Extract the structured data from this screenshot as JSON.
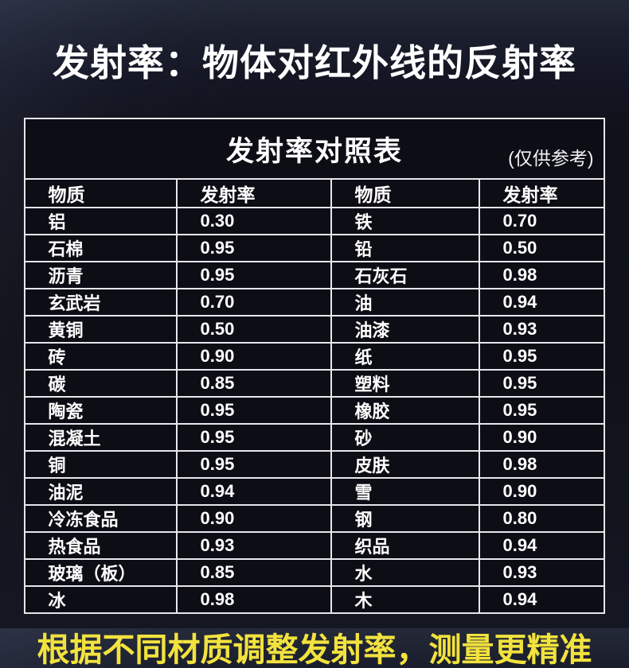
{
  "page": {
    "main_title": "发射率：物体对红外线的反射率",
    "footer_note": "根据不同材质调整发射率，测量更精准",
    "colors": {
      "background": "#12131c",
      "background_top": "#242938",
      "table_cell_background": "#0d0e15",
      "table_border": "#e6e6ec",
      "text": "#ffffff",
      "footer_text": "#f2e23e"
    }
  },
  "chart_data": {
    "type": "table",
    "title": "发射率对照表",
    "subtitle": "(仅供参考)",
    "columns": [
      "物质",
      "发射率",
      "物质",
      "发射率"
    ],
    "rows": [
      [
        "铝",
        "0.30",
        "铁",
        "0.70"
      ],
      [
        "石棉",
        "0.95",
        "铅",
        "0.50"
      ],
      [
        "沥青",
        "0.95",
        "石灰石",
        "0.98"
      ],
      [
        "玄武岩",
        "0.70",
        "油",
        "0.94"
      ],
      [
        "黄铜",
        "0.50",
        "油漆",
        "0.93"
      ],
      [
        "砖",
        "0.90",
        "纸",
        "0.95"
      ],
      [
        "碳",
        "0.85",
        "塑料",
        "0.95"
      ],
      [
        "陶瓷",
        "0.95",
        "橡胶",
        "0.95"
      ],
      [
        "混凝土",
        "0.95",
        "砂",
        "0.90"
      ],
      [
        "铜",
        "0.95",
        "皮肤",
        "0.98"
      ],
      [
        "油泥",
        "0.94",
        "雪",
        "0.90"
      ],
      [
        "冷冻食品",
        "0.90",
        "钢",
        "0.80"
      ],
      [
        "热食品",
        "0.93",
        "织品",
        "0.94"
      ],
      [
        "玻璃（板）",
        "0.85",
        "水",
        "0.93"
      ],
      [
        "冰",
        "0.98",
        "木",
        "0.94"
      ]
    ],
    "layout": {
      "legend": "none",
      "grid": "full-borders",
      "header_row": true,
      "column_pairs": 2,
      "data_rows": 15
    }
  }
}
